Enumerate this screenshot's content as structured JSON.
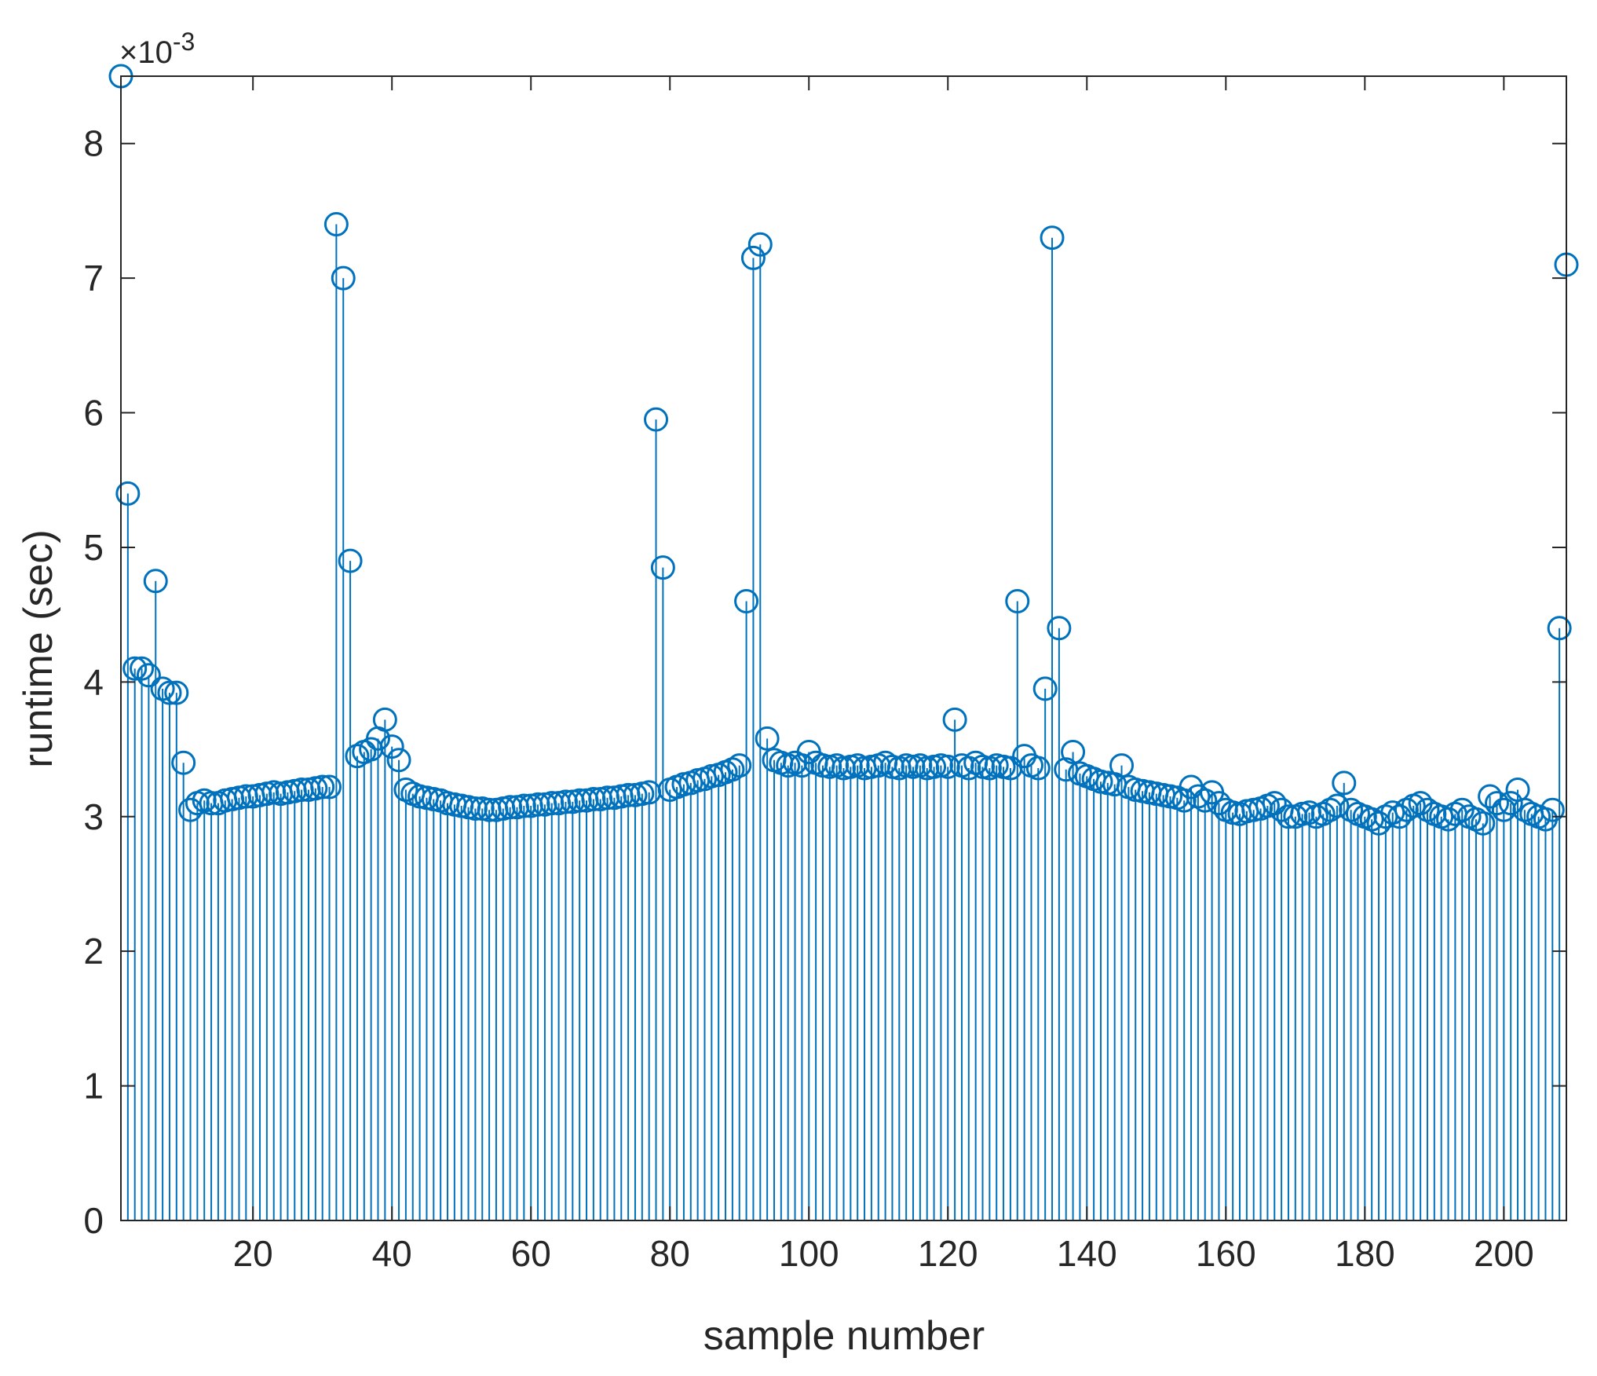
{
  "chart_data": {
    "type": "stem",
    "xlabel": "sample number",
    "ylabel": "runtime (sec)",
    "y_exponent_base": "×10",
    "y_exponent": "-3",
    "color": "#0072BD",
    "xlim": [
      1,
      209
    ],
    "ylim": [
      0,
      8.5
    ],
    "xticks": [
      20,
      40,
      60,
      80,
      100,
      120,
      140,
      160,
      180,
      200
    ],
    "yticks": [
      0,
      1,
      2,
      3,
      4,
      5,
      6,
      7,
      8
    ],
    "x": [
      1,
      2,
      3,
      4,
      5,
      6,
      7,
      8,
      9,
      10,
      11,
      12,
      13,
      14,
      15,
      16,
      17,
      18,
      19,
      20,
      21,
      22,
      23,
      24,
      25,
      26,
      27,
      28,
      29,
      30,
      31,
      32,
      33,
      34,
      35,
      36,
      37,
      38,
      39,
      40,
      41,
      42,
      43,
      44,
      45,
      46,
      47,
      48,
      49,
      50,
      51,
      52,
      53,
      54,
      55,
      56,
      57,
      58,
      59,
      60,
      61,
      62,
      63,
      64,
      65,
      66,
      67,
      68,
      69,
      70,
      71,
      72,
      73,
      74,
      75,
      76,
      77,
      78,
      79,
      80,
      81,
      82,
      83,
      84,
      85,
      86,
      87,
      88,
      89,
      90,
      91,
      92,
      93,
      94,
      95,
      96,
      97,
      98,
      99,
      100,
      101,
      102,
      103,
      104,
      105,
      106,
      107,
      108,
      109,
      110,
      111,
      112,
      113,
      114,
      115,
      116,
      117,
      118,
      119,
      120,
      121,
      122,
      123,
      124,
      125,
      126,
      127,
      128,
      129,
      130,
      131,
      132,
      133,
      134,
      135,
      136,
      137,
      138,
      139,
      140,
      141,
      142,
      143,
      144,
      145,
      146,
      147,
      148,
      149,
      150,
      151,
      152,
      153,
      154,
      155,
      156,
      157,
      158,
      159,
      160,
      161,
      162,
      163,
      164,
      165,
      166,
      167,
      168,
      169,
      170,
      171,
      172,
      173,
      174,
      175,
      176,
      177,
      178,
      179,
      180,
      181,
      182,
      183,
      184,
      185,
      186,
      187,
      188,
      189,
      190,
      191,
      192,
      193,
      194,
      195,
      196,
      197,
      198,
      199,
      200,
      201,
      202,
      203,
      204,
      205,
      206,
      207,
      208,
      209
    ],
    "values": [
      8.5,
      5.4,
      4.1,
      4.1,
      4.05,
      4.75,
      3.95,
      3.92,
      3.92,
      3.4,
      3.05,
      3.1,
      3.12,
      3.1,
      3.1,
      3.12,
      3.13,
      3.14,
      3.15,
      3.15,
      3.16,
      3.17,
      3.18,
      3.17,
      3.18,
      3.19,
      3.2,
      3.2,
      3.21,
      3.22,
      3.22,
      7.4,
      7.0,
      4.9,
      3.45,
      3.48,
      3.5,
      3.58,
      3.72,
      3.52,
      3.42,
      3.2,
      3.17,
      3.15,
      3.14,
      3.13,
      3.12,
      3.1,
      3.09,
      3.08,
      3.07,
      3.06,
      3.06,
      3.05,
      3.05,
      3.06,
      3.07,
      3.07,
      3.08,
      3.08,
      3.09,
      3.09,
      3.1,
      3.1,
      3.11,
      3.11,
      3.12,
      3.12,
      3.13,
      3.13,
      3.14,
      3.14,
      3.15,
      3.16,
      3.16,
      3.17,
      3.18,
      5.95,
      4.85,
      3.2,
      3.22,
      3.24,
      3.25,
      3.27,
      3.28,
      3.3,
      3.31,
      3.33,
      3.35,
      3.38,
      4.6,
      7.15,
      7.25,
      3.58,
      3.42,
      3.4,
      3.38,
      3.4,
      3.38,
      3.48,
      3.4,
      3.38,
      3.37,
      3.38,
      3.36,
      3.37,
      3.38,
      3.36,
      3.37,
      3.38,
      3.4,
      3.37,
      3.36,
      3.38,
      3.37,
      3.38,
      3.36,
      3.37,
      3.38,
      3.37,
      3.72,
      3.38,
      3.36,
      3.4,
      3.37,
      3.36,
      3.38,
      3.37,
      3.36,
      4.6,
      3.45,
      3.38,
      3.36,
      3.95,
      7.3,
      4.4,
      3.35,
      3.48,
      3.32,
      3.3,
      3.28,
      3.26,
      3.25,
      3.24,
      3.38,
      3.22,
      3.2,
      3.19,
      3.18,
      3.17,
      3.16,
      3.15,
      3.14,
      3.12,
      3.22,
      3.15,
      3.12,
      3.18,
      3.1,
      3.05,
      3.03,
      3.02,
      3.04,
      3.05,
      3.06,
      3.08,
      3.1,
      3.05,
      3.0,
      3.0,
      3.02,
      3.03,
      3.0,
      3.02,
      3.05,
      3.08,
      3.25,
      3.05,
      3.02,
      3.0,
      2.98,
      2.95,
      3.0,
      3.03,
      3.0,
      3.05,
      3.08,
      3.1,
      3.05,
      3.02,
      3.0,
      2.98,
      3.02,
      3.05,
      3.0,
      2.98,
      2.95,
      3.15,
      3.1,
      3.05,
      3.1,
      3.2,
      3.05,
      3.02,
      3.0,
      2.98,
      3.05,
      4.4,
      7.1
    ]
  }
}
